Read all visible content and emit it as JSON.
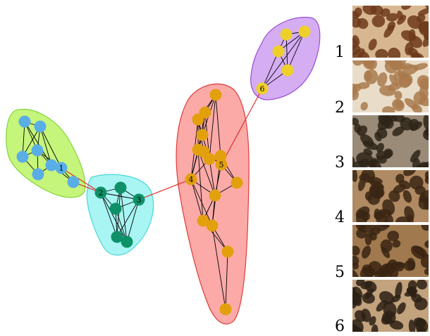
{
  "clusters": [
    {
      "name": "cluster-green",
      "fill": "#c6f57b",
      "stroke": "#7fd63a",
      "node_color": "#5aaee6"
    },
    {
      "name": "cluster-cyan",
      "fill": "#a8f5f3",
      "stroke": "#48d6d6",
      "node_color": "#0e9168"
    },
    {
      "name": "cluster-red",
      "fill": "#fbaaa8",
      "stroke": "#e23a36",
      "node_color": "#e3a00d"
    },
    {
      "name": "cluster-purple",
      "fill": "#d5adf3",
      "stroke": "#9a4ad8",
      "node_color": "#eed02a"
    }
  ],
  "node_labels": [
    "1",
    "2",
    "3",
    "4",
    "5",
    "6"
  ],
  "inter_edge_color": "#e0221c",
  "intra_edge_color": "#000000",
  "images": [
    {
      "label": "1",
      "subject": "giraffe-skin-patch"
    },
    {
      "label": "2",
      "subject": "giraffe-skin-patch"
    },
    {
      "label": "3",
      "subject": "giraffe-skin-patch"
    },
    {
      "label": "4",
      "subject": "giraffe-skin-patch"
    },
    {
      "label": "5",
      "subject": "giraffe-skin-patch"
    },
    {
      "label": "6",
      "subject": "giraffe-skin-patch"
    }
  ]
}
